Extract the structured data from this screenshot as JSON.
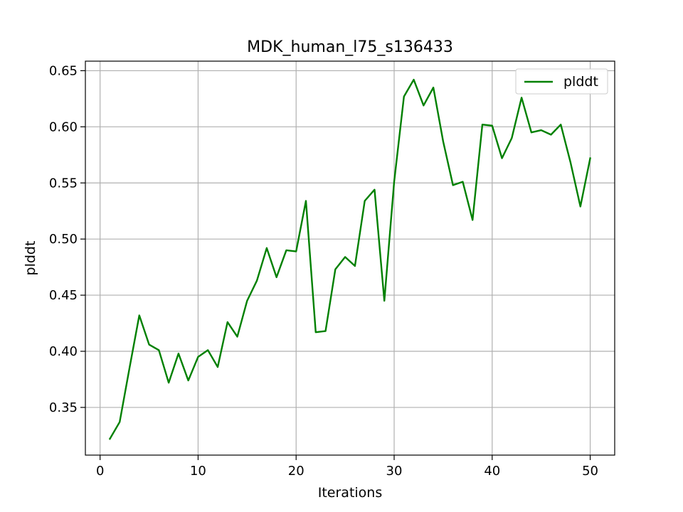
{
  "chart_data": {
    "type": "line",
    "title": "MDK_human_l75_s136433",
    "xlabel": "Iterations",
    "ylabel": "plddt",
    "xlim": [
      -1.5,
      52.5
    ],
    "ylim": [
      0.3075,
      0.6585
    ],
    "xticks": [
      0,
      10,
      20,
      30,
      40,
      50
    ],
    "xtick_labels": [
      "0",
      "10",
      "20",
      "30",
      "40",
      "50"
    ],
    "yticks": [
      0.35,
      0.4,
      0.45,
      0.5,
      0.55,
      0.6,
      0.65
    ],
    "ytick_labels": [
      "0.35",
      "0.40",
      "0.45",
      "0.50",
      "0.55",
      "0.60",
      "0.65"
    ],
    "grid": true,
    "legend_position": "top-right",
    "series": [
      {
        "name": "plddt",
        "color": "#008000",
        "x": [
          1,
          2,
          3,
          4,
          5,
          6,
          7,
          8,
          9,
          10,
          11,
          12,
          13,
          14,
          15,
          16,
          17,
          18,
          19,
          20,
          21,
          22,
          23,
          24,
          25,
          26,
          27,
          28,
          29,
          30,
          31,
          32,
          33,
          34,
          35,
          36,
          37,
          38,
          39,
          40,
          41,
          42,
          43,
          44,
          45,
          46,
          47,
          48,
          49,
          50
        ],
        "values": [
          0.322,
          0.337,
          0.385,
          0.432,
          0.406,
          0.401,
          0.372,
          0.398,
          0.374,
          0.395,
          0.401,
          0.386,
          0.426,
          0.413,
          0.445,
          0.463,
          0.492,
          0.466,
          0.49,
          0.489,
          0.534,
          0.417,
          0.418,
          0.473,
          0.484,
          0.476,
          0.534,
          0.544,
          0.445,
          0.551,
          0.627,
          0.642,
          0.619,
          0.635,
          0.587,
          0.548,
          0.551,
          0.517,
          0.602,
          0.601,
          0.572,
          0.59,
          0.626,
          0.595,
          0.597,
          0.593,
          0.602,
          0.568,
          0.529,
          0.572
        ]
      }
    ]
  }
}
